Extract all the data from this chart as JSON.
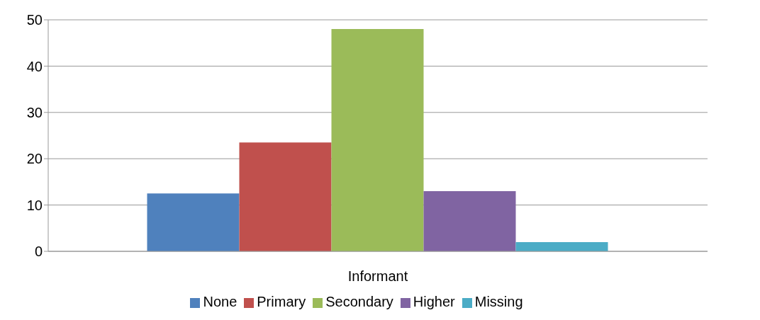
{
  "chart_data": {
    "type": "bar",
    "categories": [
      "Informant"
    ],
    "series": [
      {
        "name": "None",
        "color": "#4f81bd",
        "values": [
          12.5
        ]
      },
      {
        "name": "Primary",
        "color": "#c0504d",
        "values": [
          23.5
        ]
      },
      {
        "name": "Secondary",
        "color": "#9bbb59",
        "values": [
          48
        ]
      },
      {
        "name": "Higher",
        "color": "#8064a2",
        "values": [
          13
        ]
      },
      {
        "name": "Missing",
        "color": "#4bacc6",
        "values": [
          2
        ]
      }
    ],
    "ylim": [
      0,
      50
    ],
    "yticks": [
      0,
      10,
      20,
      30,
      40,
      50
    ],
    "grid": "y",
    "legend": "bottom"
  }
}
